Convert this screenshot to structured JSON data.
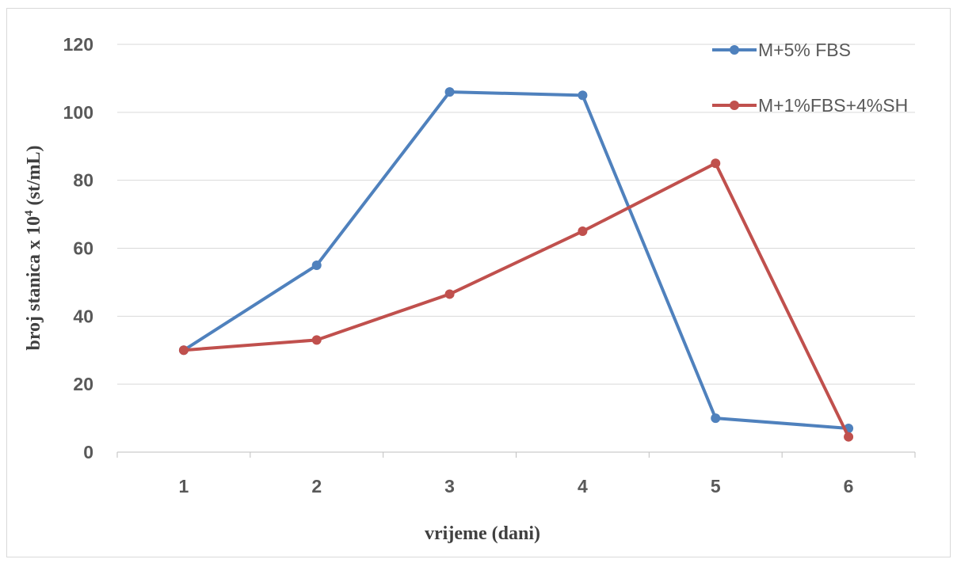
{
  "chart_data": {
    "type": "line",
    "title": "",
    "xlabel": "vrijeme (dani)",
    "ylabel": {
      "prefix": "broj stanica x 10",
      "superscript": "4",
      "suffix": " (st/mL)"
    },
    "categories": [
      "1",
      "2",
      "3",
      "4",
      "5",
      "6"
    ],
    "ylim": [
      0,
      120
    ],
    "yticks": [
      "0",
      "20",
      "40",
      "60",
      "80",
      "100",
      "120"
    ],
    "grid": true,
    "legend_position": "top-right",
    "series": [
      {
        "name": "M+5% FBS",
        "color": "#4f81bd",
        "values": [
          30,
          55,
          106,
          105,
          10,
          7
        ]
      },
      {
        "name": "M+1%FBS+4%SH",
        "color": "#c0504d",
        "values": [
          30,
          33,
          46.5,
          65,
          85,
          4.5
        ]
      }
    ]
  }
}
